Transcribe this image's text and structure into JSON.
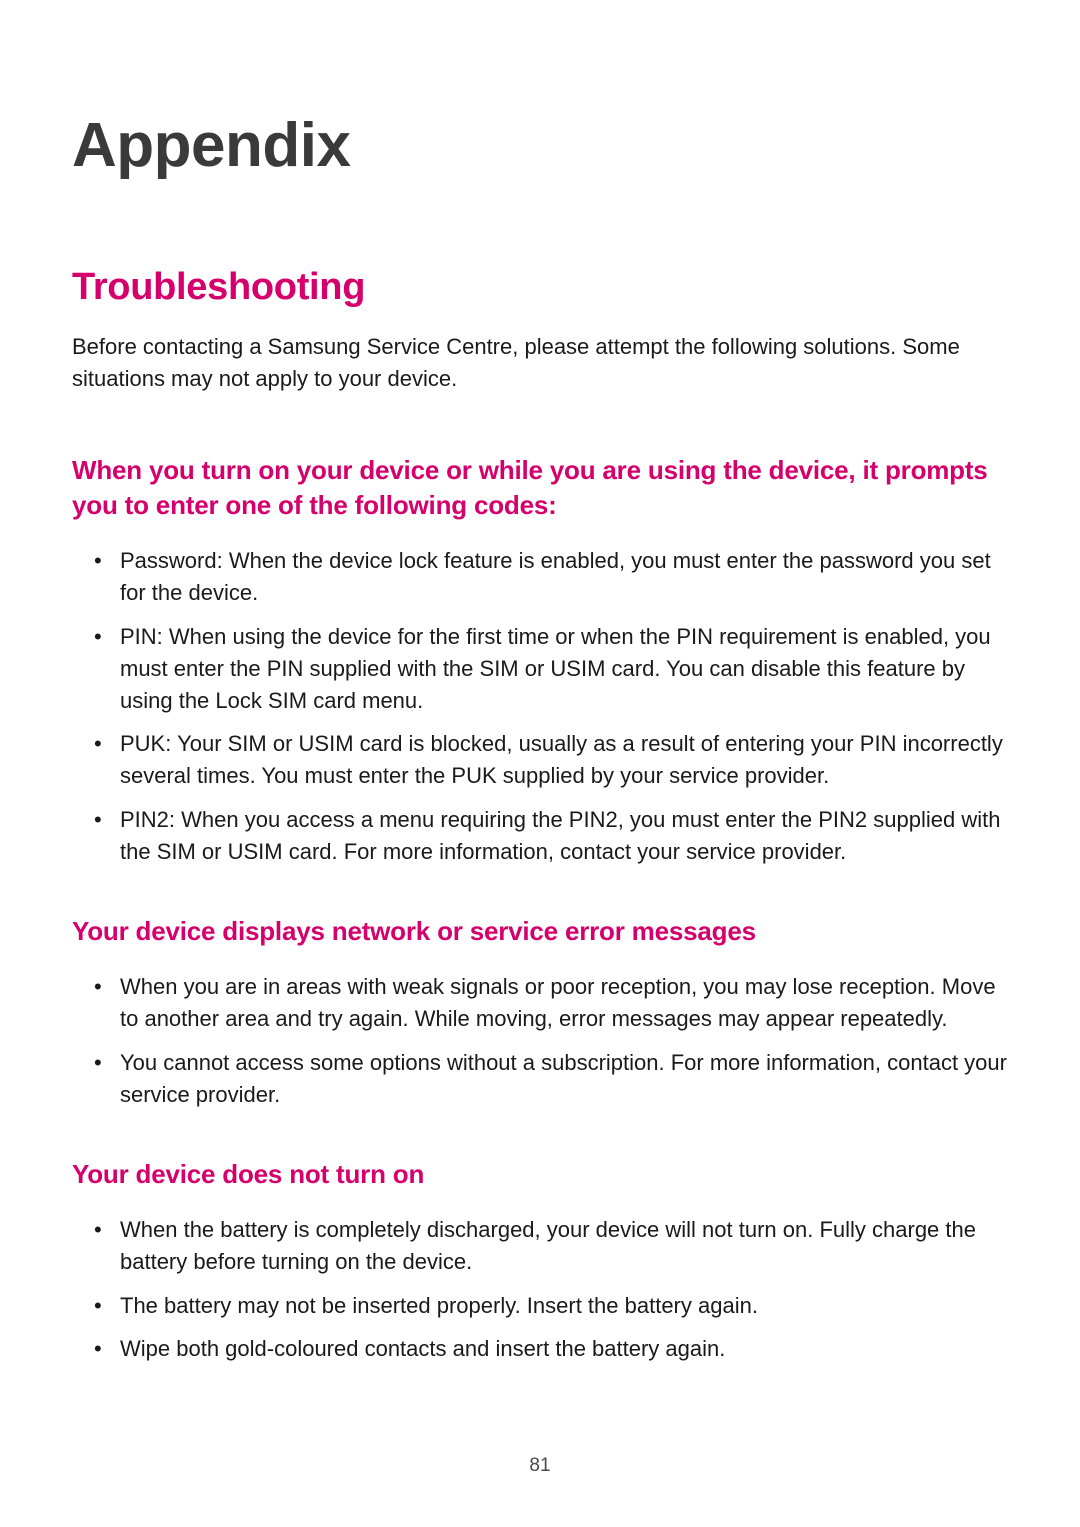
{
  "page": {
    "title": "Appendix",
    "number": "81"
  },
  "section": {
    "title": "Troubleshooting",
    "intro": "Before contacting a Samsung Service Centre, please attempt the following solutions. Some situations may not apply to your device."
  },
  "subsection1": {
    "title": "When you turn on your device or while you are using the device, it prompts you to enter one of the following codes:",
    "items": [
      "Password: When the device lock feature is enabled, you must enter the password you set for the device.",
      "PIN: When using the device for the first time or when the PIN requirement is enabled, you must enter the PIN supplied with the SIM or USIM card. You can disable this feature by using the Lock SIM card menu.",
      "PUK: Your SIM or USIM card is blocked, usually as a result of entering your PIN incorrectly several times. You must enter the PUK supplied by your service provider.",
      "PIN2: When you access a menu requiring the PIN2, you must enter the PIN2 supplied with the SIM or USIM card. For more information, contact your service provider."
    ]
  },
  "subsection2": {
    "title": "Your device displays network or service error messages",
    "items": [
      "When you are in areas with weak signals or poor reception, you may lose reception. Move to another area and try again. While moving, error messages may appear repeatedly.",
      "You cannot access some options without a subscription. For more information, contact your service provider."
    ]
  },
  "subsection3": {
    "title": "Your device does not turn on",
    "items": [
      "When the battery is completely discharged, your device will not turn on. Fully charge the battery before turning on the device.",
      "The battery may not be inserted properly. Insert the battery again.",
      "Wipe both gold-coloured contacts and insert the battery again."
    ]
  },
  "colors": {
    "title_color": "#3a3a3a",
    "accent_color": "#d6006c",
    "body_text_color": "#1a1a1a",
    "background": "#ffffff"
  }
}
